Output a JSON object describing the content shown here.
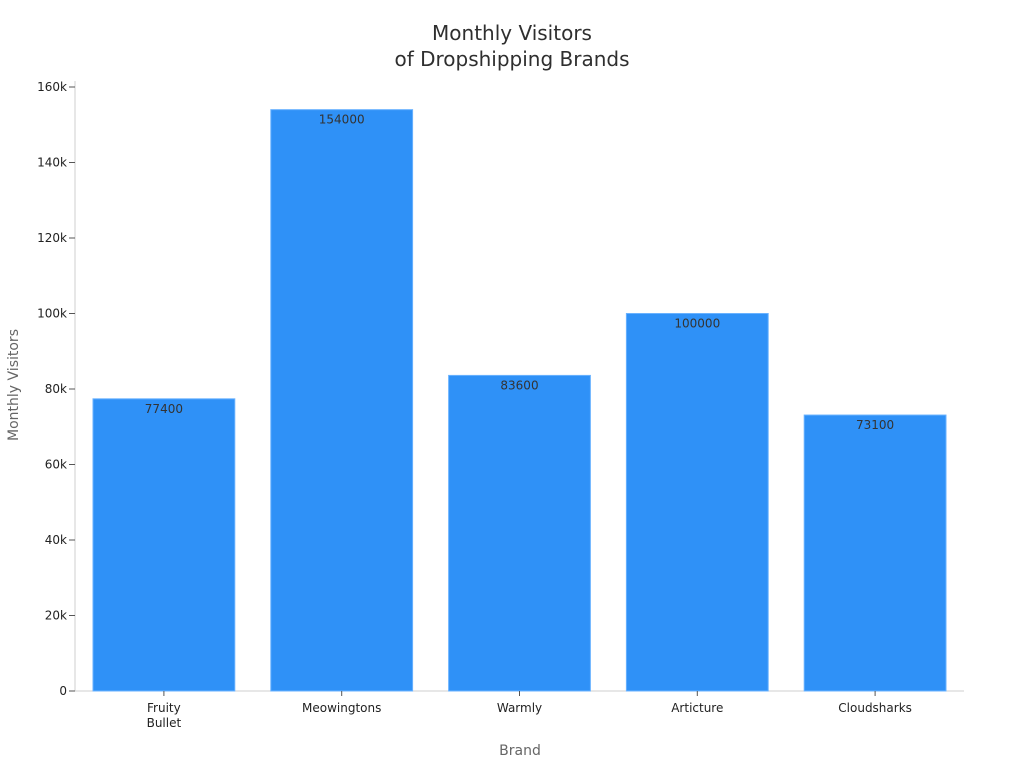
{
  "chart_data": {
    "type": "bar",
    "title": [
      "Monthly Visitors",
      "of Dropshipping Brands"
    ],
    "xlabel": "Brand",
    "ylabel": "Monthly Visitors",
    "categories": [
      [
        "Fruity",
        "Bullet"
      ],
      [
        "Meowingtons"
      ],
      [
        "Warmly"
      ],
      [
        "Articture"
      ],
      [
        "Cloudsharks"
      ]
    ],
    "values": [
      77400,
      154000,
      83600,
      100000,
      73100
    ],
    "data_labels": [
      "77400",
      "154000",
      "83600",
      "100000",
      "73100"
    ],
    "ylim": [
      0,
      160000
    ],
    "yticks": [
      0,
      20000,
      40000,
      60000,
      80000,
      100000,
      120000,
      140000,
      160000
    ],
    "ytick_labels": [
      "0",
      "20k",
      "40k",
      "60k",
      "80k",
      "100k",
      "120k",
      "140k",
      "160k"
    ],
    "colors": {
      "bar": "#2f91f7",
      "bar_edge": "#69b2ff",
      "axis": "#cfcfcf",
      "tick_text": "#222222",
      "axis_title": "#666666",
      "title": "#2f2f2f",
      "data_label": "#333333"
    },
    "grid": false,
    "legend": "none"
  }
}
